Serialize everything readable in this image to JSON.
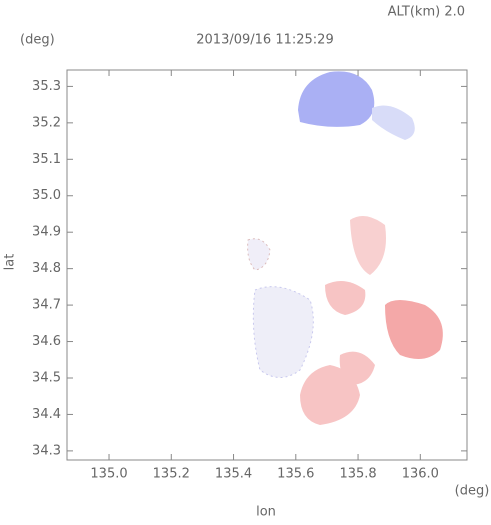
{
  "chart_data": {
    "type": "map",
    "title": "2013/09/16 11:25:29",
    "annotation": "ALT(km) 2.0",
    "x_label": "lon",
    "y_label": "lat",
    "x_unit": "(deg)",
    "y_unit": "(deg)",
    "xlim": [
      134.865,
      136.15
    ],
    "ylim": [
      34.275,
      35.345
    ],
    "xticks": [
      {
        "value": 135,
        "label": "135.0"
      },
      135.2,
      135.4,
      135.6,
      135.8,
      {
        "value": 136,
        "label": "136.0"
      }
    ],
    "yticks": [
      34.3,
      34.4,
      34.5,
      34.6,
      34.7,
      34.8,
      34.9,
      {
        "value": 35,
        "label": "35.0"
      },
      35.1,
      35.2,
      35.3
    ]
  }
}
